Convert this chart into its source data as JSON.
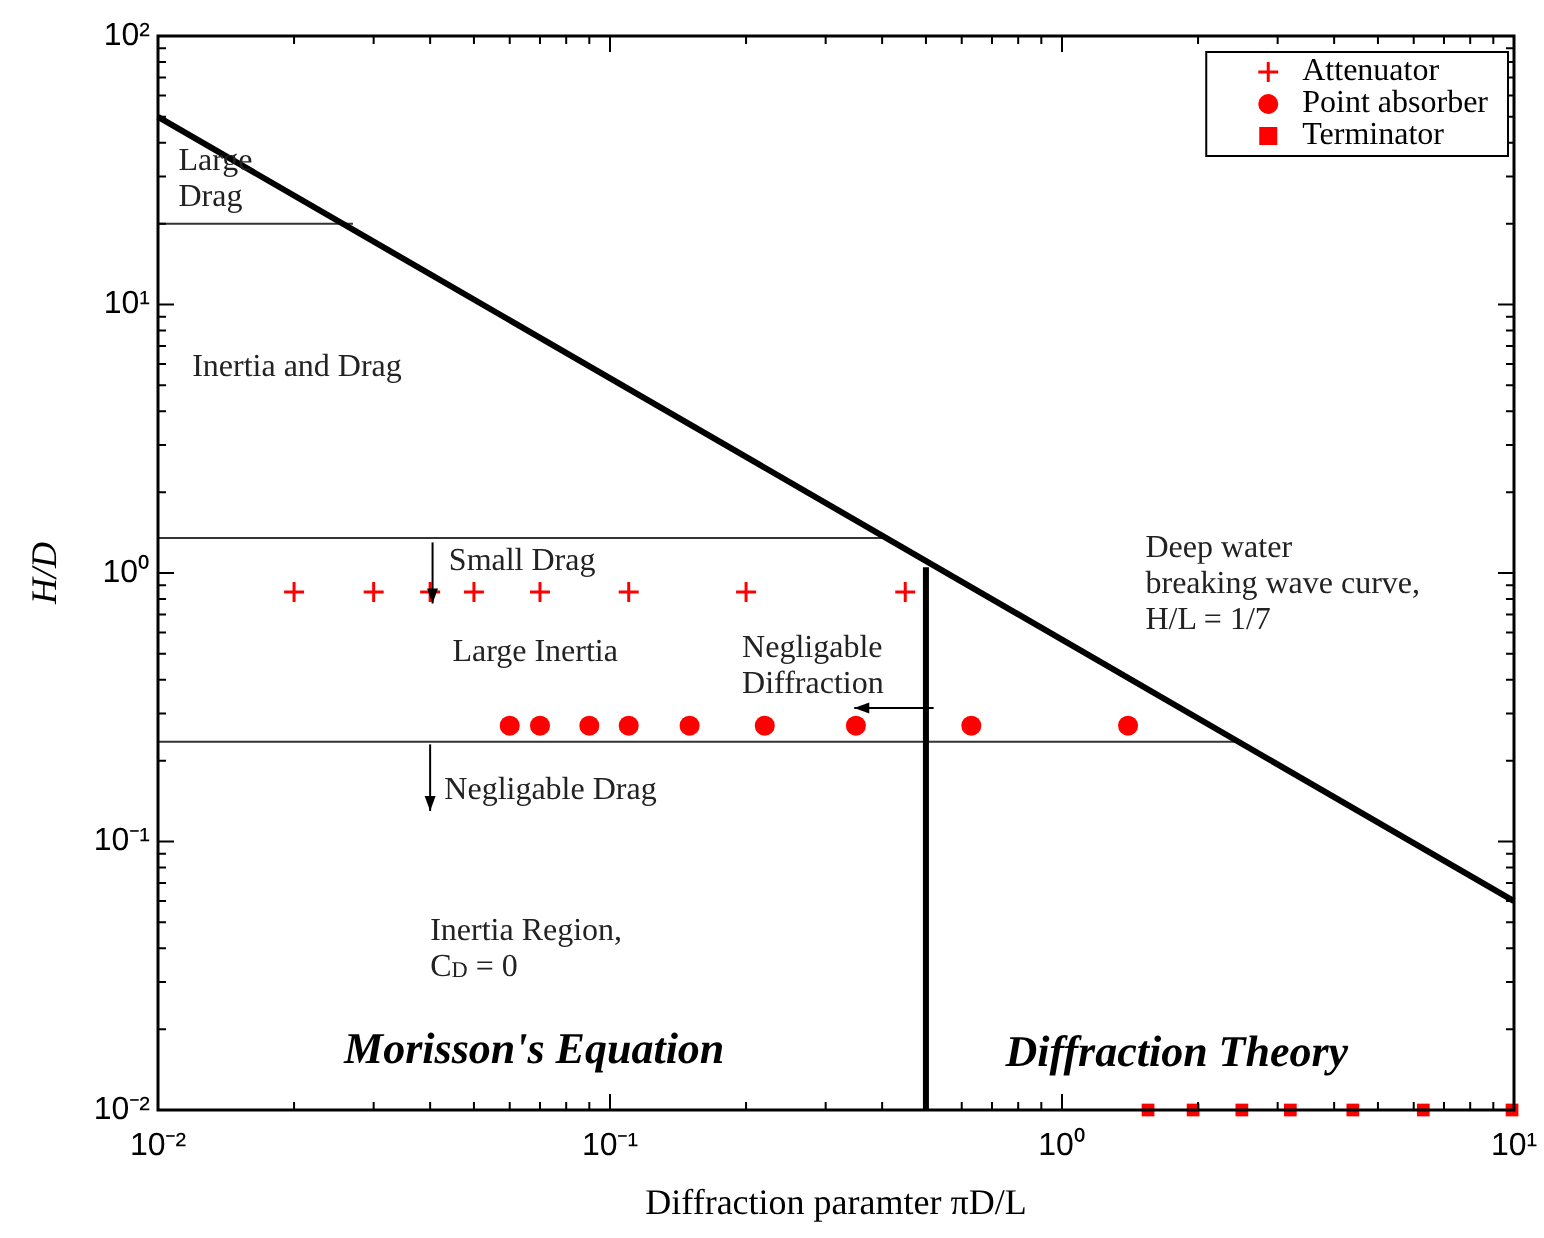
{
  "chart_data": {
    "type": "scatter",
    "xlabel": "Diffraction paramter πD/L",
    "ylabel": "H/D",
    "log": "xy",
    "grid": false,
    "legend": "top right",
    "xlim": [
      0.01,
      10
    ],
    "ylim": [
      0.01,
      100
    ],
    "xticks": [
      {
        "value": 0.01,
        "label": "10⁻²"
      },
      {
        "value": 0.02,
        "label": null
      },
      {
        "value": 0.03,
        "label": null
      },
      {
        "value": 0.04,
        "label": null
      },
      {
        "value": 0.05,
        "label": null
      },
      {
        "value": 0.06,
        "label": null
      },
      {
        "value": 0.07,
        "label": null
      },
      {
        "value": 0.08,
        "label": null
      },
      {
        "value": 0.09,
        "label": null
      },
      {
        "value": 0.1,
        "label": "10⁻¹"
      },
      {
        "value": 0.2,
        "label": null
      },
      {
        "value": 0.3,
        "label": null
      },
      {
        "value": 0.4,
        "label": null
      },
      {
        "value": 0.5,
        "label": null
      },
      {
        "value": 0.6,
        "label": null
      },
      {
        "value": 0.7,
        "label": null
      },
      {
        "value": 0.8,
        "label": null
      },
      {
        "value": 0.9,
        "label": null
      },
      {
        "value": 1,
        "label": "10⁰"
      },
      {
        "value": 2,
        "label": null
      },
      {
        "value": 3,
        "label": null
      },
      {
        "value": 4,
        "label": null
      },
      {
        "value": 5,
        "label": null
      },
      {
        "value": 6,
        "label": null
      },
      {
        "value": 7,
        "label": null
      },
      {
        "value": 8,
        "label": null
      },
      {
        "value": 9,
        "label": null
      },
      {
        "value": 10,
        "label": "10¹"
      }
    ],
    "yticks": [
      {
        "value": 0.01,
        "label": "10⁻²"
      },
      {
        "value": 0.02,
        "label": null
      },
      {
        "value": 0.03,
        "label": null
      },
      {
        "value": 0.04,
        "label": null
      },
      {
        "value": 0.05,
        "label": null
      },
      {
        "value": 0.06,
        "label": null
      },
      {
        "value": 0.07,
        "label": null
      },
      {
        "value": 0.08,
        "label": null
      },
      {
        "value": 0.09,
        "label": null
      },
      {
        "value": 0.1,
        "label": "10⁻¹"
      },
      {
        "value": 0.2,
        "label": null
      },
      {
        "value": 0.3,
        "label": null
      },
      {
        "value": 0.4,
        "label": null
      },
      {
        "value": 0.5,
        "label": null
      },
      {
        "value": 0.6,
        "label": null
      },
      {
        "value": 0.7,
        "label": null
      },
      {
        "value": 0.8,
        "label": null
      },
      {
        "value": 0.9,
        "label": null
      },
      {
        "value": 1,
        "label": "10⁰"
      },
      {
        "value": 2,
        "label": null
      },
      {
        "value": 3,
        "label": null
      },
      {
        "value": 4,
        "label": null
      },
      {
        "value": 5,
        "label": null
      },
      {
        "value": 6,
        "label": null
      },
      {
        "value": 7,
        "label": null
      },
      {
        "value": 8,
        "label": null
      },
      {
        "value": 9,
        "label": null
      },
      {
        "value": 10,
        "label": "10¹"
      },
      {
        "value": 20,
        "label": null
      },
      {
        "value": 30,
        "label": null
      },
      {
        "value": 40,
        "label": null
      },
      {
        "value": 50,
        "label": null
      },
      {
        "value": 60,
        "label": null
      },
      {
        "value": 70,
        "label": null
      },
      {
        "value": 80,
        "label": null
      },
      {
        "value": 90,
        "label": null
      },
      {
        "value": 100,
        "label": "10²"
      }
    ],
    "series": [
      {
        "type": "line",
        "color": "#000000",
        "marker": "none",
        "x": [
          0.01,
          10
        ],
        "values": [
          50,
          0.06
        ]
      },
      {
        "type": "line",
        "color": "#000000",
        "marker": "none",
        "x": [
          0.5,
          0.5
        ],
        "values": [
          0.01,
          1.05
        ]
      },
      {
        "type": "line",
        "color": "#333333",
        "marker": "none",
        "x": [
          0.01,
          0.027
        ],
        "values": [
          20,
          20
        ]
      },
      {
        "type": "line",
        "color": "#333333",
        "marker": "none",
        "x": [
          0.01,
          0.41
        ],
        "values": [
          1.35,
          1.35
        ]
      },
      {
        "type": "line",
        "color": "#333333",
        "marker": "none",
        "x": [
          0.01,
          2.48
        ],
        "values": [
          0.235,
          0.235
        ]
      },
      {
        "type": "scatter",
        "name": "Attenuator",
        "color": "#ff0000",
        "marker": "cross",
        "x": [
          0.02,
          0.03,
          0.04,
          0.05,
          0.07,
          0.11,
          0.2,
          0.45
        ],
        "values": [
          0.85,
          0.85,
          0.85,
          0.85,
          0.85,
          0.85,
          0.85,
          0.85
        ]
      },
      {
        "type": "scatter",
        "name": "Point absorber",
        "color": "#ff0000",
        "marker": "circle",
        "x": [
          0.06,
          0.07,
          0.09,
          0.11,
          0.15,
          0.22,
          0.35,
          0.63,
          1.4
        ],
        "values": [
          0.27,
          0.27,
          0.27,
          0.27,
          0.27,
          0.27,
          0.27,
          0.27,
          0.27
        ]
      },
      {
        "type": "scatter",
        "name": "Terminator",
        "color": "#ff0000",
        "marker": "square",
        "x": [
          1.55,
          1.95,
          2.5,
          3.2,
          4.4,
          6.3,
          9.9
        ],
        "values": [
          0.01,
          0.01,
          0.01,
          0.01,
          0.01,
          0.01,
          0.01
        ]
      }
    ],
    "annotations": [
      "Large\nDrag",
      "Inertia and Drag",
      "Small Drag",
      "Large Inertia",
      "Negligable\nDiffraction",
      "Deep water\nbreaking wave curve,\nH/L = 1/7",
      "Negligable Drag",
      "Inertia Region,\nC$_{D}$ = 0",
      "Morisson's Equation",
      "Diffraction Theory"
    ]
  }
}
